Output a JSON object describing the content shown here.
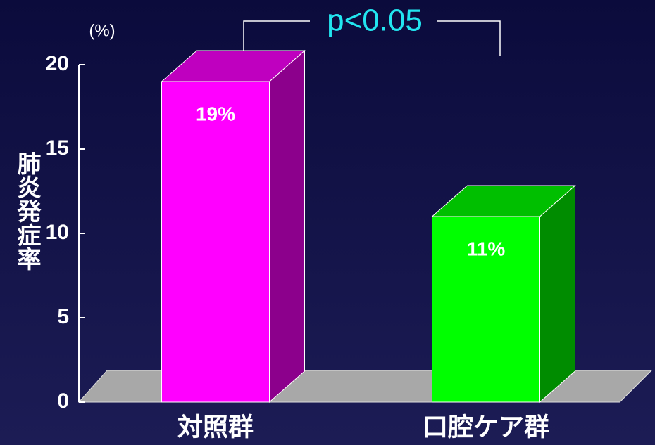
{
  "chart_data": {
    "type": "bar3d",
    "ylabel": "肺炎発症率",
    "unit_label": "(%)",
    "annotation": "p<0.05",
    "categories": [
      "対照群",
      "口腔ケア群"
    ],
    "values": [
      19,
      11
    ],
    "value_labels": [
      "19%",
      "11%"
    ],
    "colors": [
      "#ff00ff",
      "#00ff00"
    ],
    "ylim": [
      0,
      20
    ],
    "yticks": [
      0,
      5,
      10,
      15,
      20
    ]
  }
}
